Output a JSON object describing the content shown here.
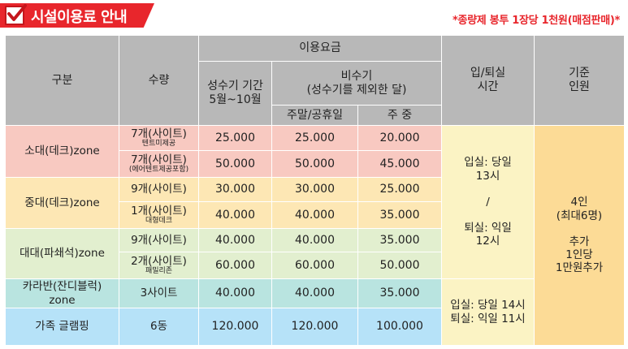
{
  "header": {
    "title": "시설이용료 안내",
    "notice": "*종량제 봉투 1장당 1천원(매점판매)*"
  },
  "colors": {
    "title_red": "#e8262c",
    "header_gray": "#b8b8b8",
    "pink": "#f8c9c1",
    "yellow": "#fde7b4",
    "green": "#e2efcf",
    "teal": "#b9e4e0",
    "blue": "#b6e2f8",
    "time_bg": "#fbf3c4",
    "standard_bg": "#fcdb96"
  },
  "table": {
    "headers": {
      "category": "구분",
      "quantity": "수량",
      "fee": "이용요금",
      "peak": "성수기 기간",
      "peak_period": "5월~10월",
      "offpeak": "비수기",
      "offpeak_note": "(성수기를 제외한 달)",
      "weekend": "주말/공휴일",
      "weekday": "주 중",
      "checkin": "입/퇴실",
      "checkin2": "시간",
      "standard": "기준",
      "standard2": "인원"
    },
    "rows": [
      {
        "category": "소대(데크)zone",
        "qty": "7개(사이트)",
        "qty_note": "텐트미제공",
        "peak": "25.000",
        "weekend": "25.000",
        "weekday": "20.000"
      },
      {
        "qty": "7개(사이트)",
        "qty_note": "(에어텐트제공포함)",
        "peak": "50.000",
        "weekend": "50.000",
        "weekday": "45.000"
      },
      {
        "category": "중대(데크)zone",
        "qty": "9개(사이트)",
        "qty_note": "",
        "peak": "30.000",
        "weekend": "30.000",
        "weekday": "25.000"
      },
      {
        "qty": "1개(사이트)",
        "qty_note": "대형데크",
        "peak": "40.000",
        "weekend": "40.000",
        "weekday": "35.000"
      },
      {
        "category": "대대(파쇄석)zone",
        "qty": "9개(사이트)",
        "qty_note": "",
        "peak": "40.000",
        "weekend": "40.000",
        "weekday": "35.000"
      },
      {
        "qty": "2개(사이트)",
        "qty_note": "패밀리존",
        "peak": "60.000",
        "weekend": "60.000",
        "weekday": "50.000"
      },
      {
        "category": "카라반(잔디블럭)",
        "category2": "zone",
        "qty": "3사이트",
        "qty_note": "",
        "peak": "40.000",
        "weekend": "40.000",
        "weekday": "35.000"
      },
      {
        "category": "가족 글램핑",
        "qty": "6동",
        "qty_note": "",
        "peak": "120.000",
        "weekend": "120.000",
        "weekday": "100.000"
      }
    ],
    "time": {
      "checkin": "입실: 당일",
      "checkin_hour": "13시",
      "sep": "/",
      "checkout": "퇴실: 익일",
      "checkout_hour": "12시",
      "glamping_in": "입실: 당일 14시",
      "glamping_out": "퇴실: 익일 11시"
    },
    "standard": {
      "base": "4인",
      "max": "(최대6명)",
      "extra1": "추가",
      "extra2": "1인당",
      "extra3": "1만원추가"
    }
  }
}
